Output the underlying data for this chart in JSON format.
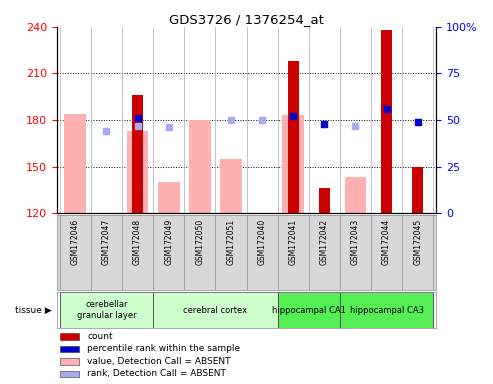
{
  "title": "GDS3726 / 1376254_at",
  "samples": [
    "GSM172046",
    "GSM172047",
    "GSM172048",
    "GSM172049",
    "GSM172050",
    "GSM172051",
    "GSM172040",
    "GSM172041",
    "GSM172042",
    "GSM172043",
    "GSM172044",
    "GSM172045"
  ],
  "ylim_left": [
    120,
    240
  ],
  "ylim_right": [
    0,
    100
  ],
  "yticks_left": [
    120,
    150,
    180,
    210,
    240
  ],
  "yticks_right": [
    0,
    25,
    50,
    75,
    100
  ],
  "count_values": [
    null,
    null,
    196,
    null,
    null,
    null,
    null,
    218,
    136,
    null,
    238,
    150
  ],
  "count_color": "#cc0000",
  "absent_value_values": [
    184,
    null,
    173,
    140,
    180,
    155,
    null,
    183,
    null,
    143,
    null,
    null
  ],
  "absent_value_color": "#ffb0b0",
  "percentile_rank_values": [
    null,
    null,
    51,
    null,
    null,
    null,
    null,
    52,
    48,
    null,
    56,
    49
  ],
  "percentile_rank_color": "#0000cc",
  "absent_rank_values": [
    null,
    44,
    47,
    46,
    null,
    50,
    50,
    null,
    null,
    47,
    null,
    null
  ],
  "absent_rank_color": "#aaaaee",
  "group_sample_ranges": [
    {
      "label": "cerebellar\ngranular layer",
      "start": 0,
      "end": 2,
      "color": "#ccffcc"
    },
    {
      "label": "cerebral cortex",
      "start": 3,
      "end": 6,
      "color": "#ccffcc"
    },
    {
      "label": "hippocampal CA1",
      "start": 7,
      "end": 8,
      "color": "#55ee55"
    },
    {
      "label": "hippocampal CA3",
      "start": 9,
      "end": 11,
      "color": "#55ee55"
    }
  ],
  "legend_items": [
    {
      "color": "#cc0000",
      "label": "count"
    },
    {
      "color": "#0000cc",
      "label": "percentile rank within the sample"
    },
    {
      "color": "#ffb0b0",
      "label": "value, Detection Call = ABSENT"
    },
    {
      "color": "#aaaaee",
      "label": "rank, Detection Call = ABSENT"
    }
  ],
  "background_color": "#ffffff"
}
